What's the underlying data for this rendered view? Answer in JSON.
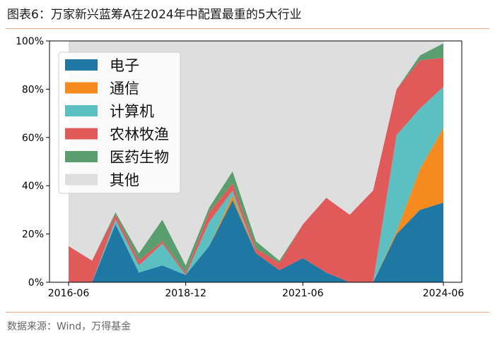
{
  "header": {
    "title": "图表6：万家新兴蓝筹A在2024年中配置最重的5大行业"
  },
  "footer": {
    "source": "数据来源：Wind，万得基金"
  },
  "chart_data": {
    "type": "area",
    "stacked": true,
    "x": [
      "2016-06",
      "2016-12",
      "2017-06",
      "2017-12",
      "2018-06",
      "2018-12",
      "2019-06",
      "2019-12",
      "2020-06",
      "2020-12",
      "2021-06",
      "2021-12",
      "2022-06",
      "2022-12",
      "2023-06",
      "2023-12",
      "2024-06"
    ],
    "xticks": [
      "2016-06",
      "2018-12",
      "2021-06",
      "2024-06"
    ],
    "yticks": [
      "0%",
      "20%",
      "40%",
      "60%",
      "80%",
      "100%"
    ],
    "ylim": [
      0,
      100
    ],
    "legend_position": "top-left",
    "series": [
      {
        "name": "电子",
        "color": "#1f77a4",
        "values": [
          0,
          0,
          24,
          4,
          7,
          3,
          15,
          34,
          12,
          5,
          10,
          4,
          0,
          0,
          20,
          30,
          33
        ]
      },
      {
        "name": "通信",
        "color": "#f58a1f",
        "values": [
          0,
          0,
          0,
          0,
          0,
          0,
          0,
          2,
          0,
          0,
          0,
          0,
          0,
          0,
          1,
          17,
          31
        ]
      },
      {
        "name": "计算机",
        "color": "#5cbfc1",
        "values": [
          0,
          0,
          2,
          3,
          9,
          0,
          10,
          2,
          0,
          0,
          0,
          0,
          0,
          0,
          40,
          25,
          17
        ]
      },
      {
        "name": "农林牧渔",
        "color": "#e05a5a",
        "values": [
          15,
          9,
          2,
          2,
          1,
          1,
          4,
          3,
          2,
          3,
          14,
          31,
          28,
          38,
          19,
          20,
          12
        ]
      },
      {
        "name": "医药生物",
        "color": "#5a9e6f",
        "values": [
          0,
          0,
          1,
          3,
          9,
          3,
          2,
          5,
          3,
          1,
          0,
          0,
          0,
          0,
          0,
          2,
          6
        ]
      },
      {
        "name": "其他",
        "color": "#dedede",
        "values": [
          85,
          91,
          71,
          88,
          74,
          93,
          69,
          54,
          83,
          91,
          76,
          65,
          72,
          62,
          20,
          6,
          1
        ]
      }
    ]
  }
}
